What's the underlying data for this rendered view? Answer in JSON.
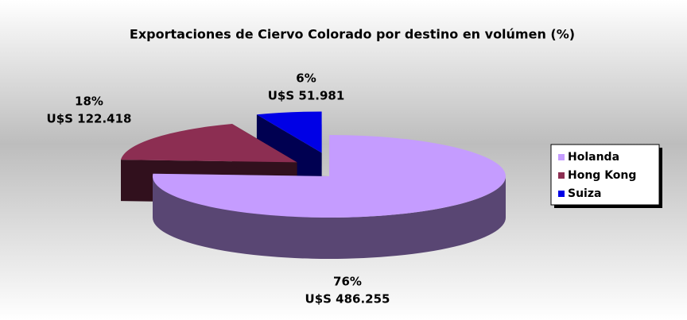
{
  "chart_data": {
    "type": "pie3d",
    "title": "Exportaciones de Ciervo Colorado por destino en volúmen (%)",
    "categories": [
      "Holanda",
      "Hong Kong",
      "Suiza"
    ],
    "values": [
      76,
      18,
      6
    ],
    "value_labels": [
      "76%",
      "18%",
      "6%"
    ],
    "amount_labels": [
      "U$S 486.255",
      "U$S 122.418",
      "U$S 51.981"
    ],
    "colors": [
      "#c59cff",
      "#8c2e52",
      "#0000e6"
    ],
    "legend": "right"
  }
}
